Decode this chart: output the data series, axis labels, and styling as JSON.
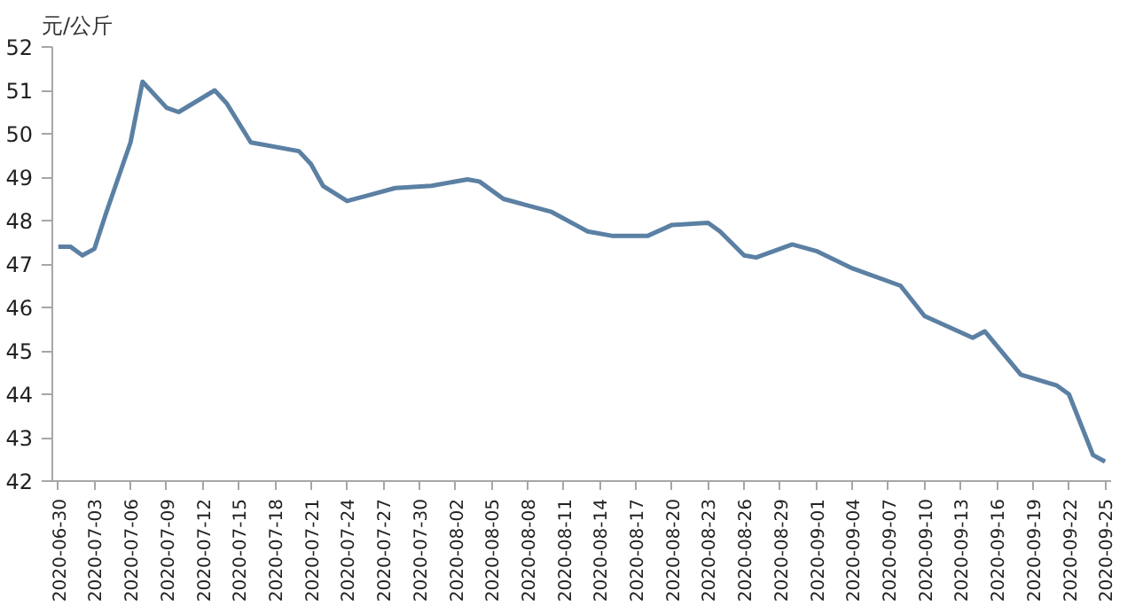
{
  "chart_data": {
    "type": "line",
    "ylabel": "元/公斤",
    "x": [
      "2020-06-30",
      "2020-07-01",
      "2020-07-02",
      "2020-07-03",
      "2020-07-04",
      "2020-07-05",
      "2020-07-06",
      "2020-07-07",
      "2020-07-09",
      "2020-07-10",
      "2020-07-13",
      "2020-07-14",
      "2020-07-16",
      "2020-07-20",
      "2020-07-21",
      "2020-07-22",
      "2020-07-24",
      "2020-07-26",
      "2020-07-28",
      "2020-07-31",
      "2020-08-03",
      "2020-08-04",
      "2020-08-06",
      "2020-08-08",
      "2020-08-10",
      "2020-08-12",
      "2020-08-13",
      "2020-08-15",
      "2020-08-18",
      "2020-08-20",
      "2020-08-23",
      "2020-08-24",
      "2020-08-26",
      "2020-08-27",
      "2020-08-30",
      "2020-09-01",
      "2020-09-04",
      "2020-09-08",
      "2020-09-10",
      "2020-09-14",
      "2020-09-15",
      "2020-09-18",
      "2020-09-21",
      "2020-09-22",
      "2020-09-24",
      "2020-09-25"
    ],
    "series": [
      {
        "color": "#5b80a3",
        "values": [
          47.4,
          47.4,
          47.2,
          47.35,
          48.2,
          49.0,
          49.8,
          51.2,
          50.6,
          50.5,
          51.0,
          50.7,
          49.8,
          49.6,
          49.3,
          48.8,
          48.45,
          48.6,
          48.75,
          48.8,
          48.95,
          48.9,
          48.5,
          48.35,
          48.2,
          47.9,
          47.75,
          47.65,
          47.65,
          47.9,
          47.95,
          47.75,
          47.2,
          47.15,
          47.45,
          47.3,
          46.9,
          46.5,
          45.8,
          45.3,
          45.45,
          44.45,
          44.2,
          44.0,
          42.6,
          42.45
        ]
      }
    ],
    "xlim": [
      "2020-06-30",
      "2020-09-25"
    ],
    "xticks": [
      "2020-06-30",
      "2020-07-03",
      "2020-07-06",
      "2020-07-09",
      "2020-07-12",
      "2020-07-15",
      "2020-07-18",
      "2020-07-21",
      "2020-07-24",
      "2020-07-27",
      "2020-07-30",
      "2020-08-02",
      "2020-08-05",
      "2020-08-08",
      "2020-08-11",
      "2020-08-14",
      "2020-08-17",
      "2020-08-20",
      "2020-08-23",
      "2020-08-26",
      "2020-08-29",
      "2020-09-01",
      "2020-09-04",
      "2020-09-07",
      "2020-09-10",
      "2020-09-13",
      "2020-09-16",
      "2020-09-19",
      "2020-09-22",
      "2020-09-25"
    ],
    "ylim": [
      42,
      52
    ],
    "yticks": [
      42,
      43,
      44,
      45,
      46,
      47,
      48,
      49,
      50,
      51,
      52
    ],
    "grid": false,
    "marker": "none",
    "line_style": "solid"
  }
}
